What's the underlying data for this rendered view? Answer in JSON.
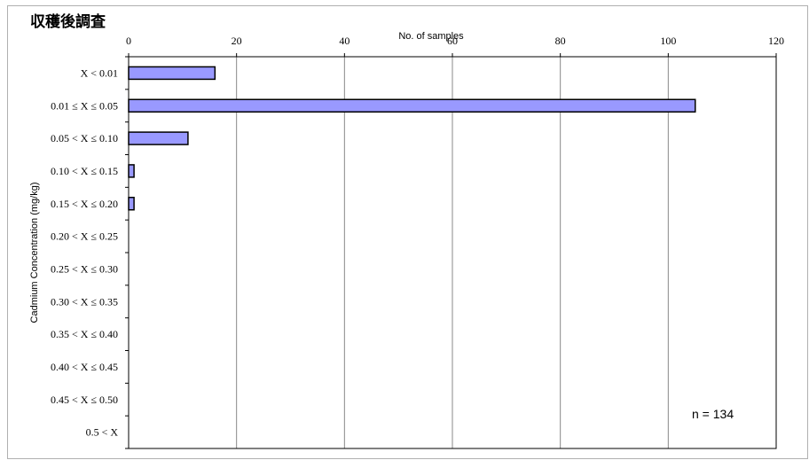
{
  "page": {
    "title": "収穫後調査"
  },
  "chart_data": {
    "type": "bar",
    "orientation": "horizontal",
    "xlabel": "No. of samples",
    "ylabel": "Cadmium Concentration (mg/kg)",
    "xlim": [
      0,
      120
    ],
    "x_ticks": [
      0,
      20,
      40,
      60,
      80,
      100,
      120
    ],
    "x_axis_position": "top",
    "grid": "vertical",
    "categories": [
      "X  <  0.01",
      "0.01 ≤ X ≤ 0.05",
      "0.05  < X ≤ 0.10",
      "0.10  < X ≤ 0.15",
      "0.15  < X ≤ 0.20",
      "0.20  < X ≤ 0.25",
      "0.25  < X ≤ 0.30",
      "0.30  < X ≤ 0.35",
      "0.35  < X ≤ 0.40",
      "0.40  < X ≤ 0.45",
      "0.45  < X ≤ 0.50",
      "0.5  <  X"
    ],
    "values": [
      16,
      105,
      11,
      1,
      1,
      0,
      0,
      0,
      0,
      0,
      0,
      0
    ],
    "bar_color": "#9999ff",
    "annotation": "n = 134"
  }
}
